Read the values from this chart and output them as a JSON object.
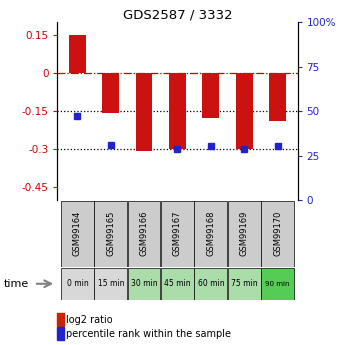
{
  "title": "GDS2587 / 3332",
  "samples": [
    "GSM99164",
    "GSM99165",
    "GSM99166",
    "GSM99167",
    "GSM99168",
    "GSM99169",
    "GSM99170"
  ],
  "time_labels": [
    "0 min",
    "15 min",
    "30 min",
    "45 min",
    "60 min",
    "75 min",
    "90 min"
  ],
  "log2_ratio": [
    0.15,
    -0.155,
    -0.305,
    -0.3,
    -0.175,
    -0.3,
    -0.19
  ],
  "percentile_rank": [
    47,
    28,
    null,
    25,
    27,
    25,
    27
  ],
  "ylim_left": [
    -0.5,
    0.2
  ],
  "ylim_right": [
    0,
    100
  ],
  "yticks_left": [
    0.15,
    0.0,
    -0.15,
    -0.3,
    -0.45
  ],
  "yticks_left_labels": [
    "0.15",
    "0",
    "-0.15",
    "-0.3",
    "-0.45"
  ],
  "yticks_right": [
    100,
    75,
    50,
    25,
    0
  ],
  "yticks_right_labels": [
    "100%",
    "75",
    "50",
    "25",
    "0"
  ],
  "bar_color": "#cc1111",
  "point_color": "#2222cc",
  "bar_width": 0.5,
  "time_colors": [
    "#d8d8d8",
    "#d8d8d8",
    "#aaddaa",
    "#aaddaa",
    "#aaddaa",
    "#aaddaa",
    "#55cc55"
  ],
  "sample_box_color": "#cccccc",
  "background_color": "#ffffff",
  "legend_bar_color": "#cc2200",
  "legend_pt_color": "#2222cc"
}
